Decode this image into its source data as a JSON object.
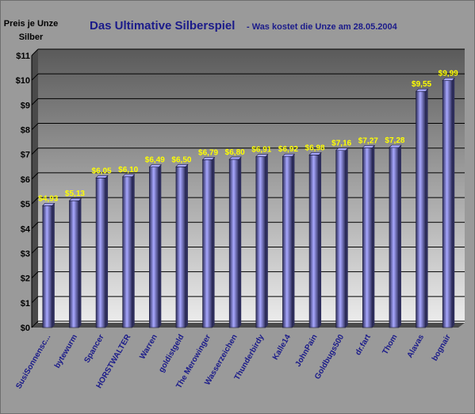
{
  "title": "Das Ultimative Silberspiel",
  "subtitle": "- Was kostet die Unze am 28.05.2004",
  "ylabel_line1": "Preis je Unze",
  "ylabel_line2": "Silber",
  "colors": {
    "background": "#9a9a9a",
    "plot_top": "#5a5a5a",
    "plot_bottom": "#ececec",
    "bar_light": "#a8a8ff",
    "bar_dark": "#2e2e5c",
    "value_label": "#ffff00",
    "category_label": "#1b1b8a",
    "title": "#1b1b8a"
  },
  "chart_data": {
    "type": "bar",
    "title": "Das Ultimative Silberspiel - Was kostet die Unze am 28.05.2004",
    "ylabel": "Preis je Unze Silber",
    "xlabel": "",
    "ylim": [
      0,
      11
    ],
    "yticks": [
      "$0",
      "$1",
      "$2",
      "$3",
      "$4",
      "$5",
      "$6",
      "$7",
      "$8",
      "$9",
      "$10",
      "$11"
    ],
    "grid": true,
    "legend": "none",
    "categories": [
      "SusiSonnensc...",
      "bytewurm",
      "Spancer",
      "HORSTWALTER",
      "Warren",
      "goldistgeld",
      "The Merowinger",
      "Wasserzeichen",
      "Thunderbirdy",
      "Kalle14",
      "JohnPain",
      "Goldbugs500",
      "dr.fart",
      "Thom",
      "Alavas",
      "bognair"
    ],
    "values": [
      4.93,
      5.13,
      6.05,
      6.1,
      6.49,
      6.5,
      6.79,
      6.8,
      6.91,
      6.92,
      6.98,
      7.16,
      7.27,
      7.28,
      9.55,
      9.99
    ],
    "value_labels": [
      "$4,93",
      "$5,13",
      "$6,05",
      "$6,10",
      "$6,49",
      "$6,50",
      "$6,79",
      "$6,80",
      "$6,91",
      "$6,92",
      "$6,98",
      "$7,16",
      "$7,27",
      "$7,28",
      "$9,55",
      "$9,99"
    ]
  }
}
